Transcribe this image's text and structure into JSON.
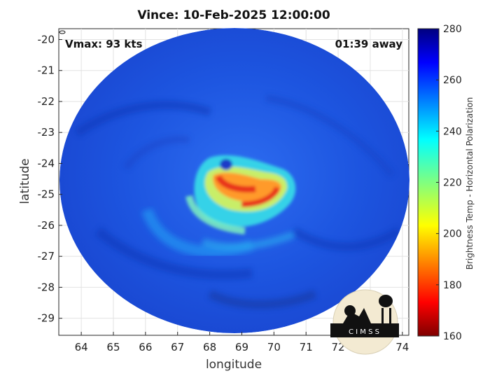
{
  "title": "Vince: 10-Feb-2025 12:00:00",
  "annotations": {
    "vmax": "Vmax: 93 kts",
    "time_away": "01:39 away"
  },
  "axes": {
    "xlabel": "longitude",
    "ylabel": "latitude",
    "xticks": [
      "64",
      "65",
      "66",
      "67",
      "68",
      "69",
      "70",
      "71",
      "72",
      "73",
      "74"
    ],
    "yticks": [
      "-20",
      "-21",
      "-22",
      "-23",
      "-24",
      "-25",
      "-26",
      "-27",
      "-28",
      "-29"
    ],
    "xlim": [
      63.3,
      74.2
    ],
    "ylim": [
      -29.55,
      -19.65
    ]
  },
  "colorbar": {
    "label": "Brightness Temp - Horizontal Polarization",
    "ticks": [
      "280",
      "260",
      "240",
      "220",
      "200",
      "180",
      "160"
    ],
    "range": [
      160,
      280
    ],
    "colormap": "jet"
  },
  "storm_center": {
    "lon": 68.9,
    "lat": -24.8
  },
  "logo": {
    "text": "C I M S S"
  },
  "colors": {
    "background_scene": "#1f55e0",
    "warm_core": "#e8301a",
    "ring": "#35d8e8"
  }
}
